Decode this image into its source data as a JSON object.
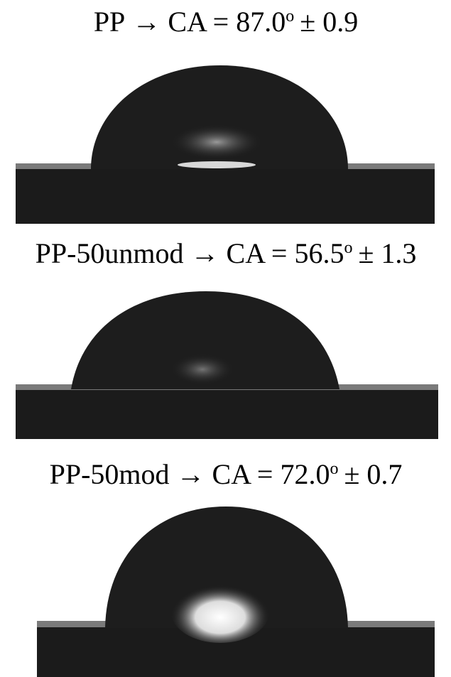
{
  "panels": [
    {
      "sample": "PP",
      "arrow": "→",
      "measure": "CA = 87.0",
      "degree": "o",
      "error": "± 0.9"
    },
    {
      "sample": "PP-50unmod",
      "arrow": "→",
      "measure": "CA = 56.5",
      "degree": "o",
      "error": "± 1.3"
    },
    {
      "sample": "PP-50mod",
      "arrow": "→",
      "measure": "CA = 72.0",
      "degree": "o",
      "error": "± 0.7"
    }
  ]
}
